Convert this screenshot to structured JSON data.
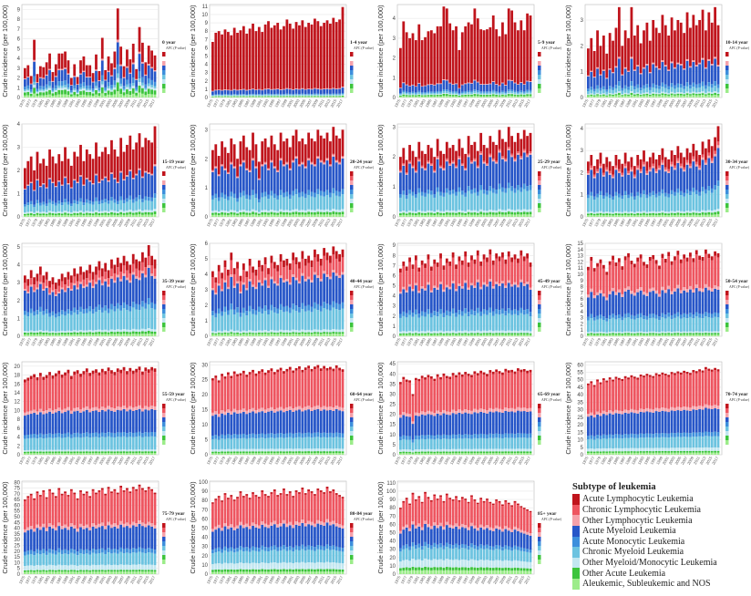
{
  "chart_data": {
    "type": "bar",
    "stacked": true,
    "ylabel": "Crude incidence (per 100,000)",
    "apc_header": "APC (P value)",
    "years": [
      1975,
      1976,
      1977,
      1978,
      1979,
      1980,
      1981,
      1982,
      1983,
      1984,
      1985,
      1986,
      1987,
      1988,
      1989,
      1990,
      1991,
      1992,
      1993,
      1994,
      1995,
      1996,
      1997,
      1998,
      1999,
      2000,
      2001,
      2002,
      2003,
      2004,
      2005,
      2006,
      2007,
      2008,
      2009,
      2010,
      2011,
      2012,
      2013,
      2014,
      2015,
      2016,
      2017
    ],
    "legend": {
      "title": "Subtype of leukemia",
      "placement": "bottom-right",
      "items": [
        {
          "name": "Acute Lymphocytic Leukemia",
          "color": "#c0141c"
        },
        {
          "name": "Chronic Lymphocytic Leukemia",
          "color": "#ee5560"
        },
        {
          "name": "Other Lymphocytic Leukemia",
          "color": "#f5a1aa"
        },
        {
          "name": "Acute Myeloid Leukemia",
          "color": "#2756c8"
        },
        {
          "name": "Acute Monocytic Leukemia",
          "color": "#3d8fdc"
        },
        {
          "name": "Chronic Myeloid Leukemia",
          "color": "#6cc3e0"
        },
        {
          "name": "Other Myeloid/Monocytic Leukemia",
          "color": "#c2e7f1"
        },
        {
          "name": "Other Acute Leukemia",
          "color": "#3cc43c"
        },
        {
          "name": "Aleukemic, Subleukemic and NOS",
          "color": "#9cec8a"
        }
      ]
    },
    "panels": [
      {
        "title": "0 year",
        "ymax": 9.5,
        "step": 1,
        "shares": [
          0.35,
          0,
          0.03,
          0.25,
          0.1,
          0.05,
          0.05,
          0.1,
          0.07
        ],
        "totals": [
          3.0,
          3.3,
          2.2,
          5.9,
          2.4,
          3.2,
          3.1,
          3.6,
          4.5,
          2.6,
          3.4,
          4.5,
          4.5,
          4.7,
          3.8,
          2.0,
          3.4,
          2.1,
          3.8,
          4.2,
          3.3,
          3.3,
          2.5,
          4.4,
          2.7,
          6.1,
          2.8,
          4.2,
          3.5,
          4.7,
          9.1,
          5.2,
          3.2,
          4.9,
          3.9,
          5.5,
          2.9,
          7.2,
          5.6,
          3.6,
          5.3,
          4.8,
          4.3
        ]
      },
      {
        "title": "1-4 year",
        "ymax": 11.2,
        "step": 1,
        "shares": [
          0.88,
          0,
          0.01,
          0.06,
          0.01,
          0.01,
          0.01,
          0.01,
          0.01
        ],
        "totals": [
          6.7,
          7.8,
          8.0,
          7.6,
          8.2,
          7.9,
          7.5,
          8.4,
          7.8,
          8.1,
          8.6,
          7.7,
          8.3,
          8.9,
          8.0,
          8.5,
          7.9,
          8.8,
          9.2,
          8.4,
          8.7,
          9.0,
          8.2,
          8.6,
          9.4,
          8.9,
          8.3,
          9.1,
          8.7,
          9.3,
          8.5,
          9.0,
          8.8,
          9.5,
          9.2,
          8.6,
          9.0,
          9.3,
          8.9,
          9.6,
          9.1,
          9.4,
          10.9
        ]
      },
      {
        "title": "5-9 year",
        "ymax": 4.7,
        "step": 1,
        "shares": [
          0.8,
          0,
          0.01,
          0.1,
          0.02,
          0.02,
          0.01,
          0.02,
          0.02
        ],
        "totals": [
          2.5,
          3.85,
          3.3,
          3.0,
          3.25,
          2.9,
          3.7,
          2.9,
          3.05,
          3.35,
          3.4,
          3.25,
          3.6,
          3.6,
          4.6,
          4.5,
          3.75,
          3.4,
          3.6,
          2.4,
          3.3,
          3.6,
          3.8,
          3.7,
          4.5,
          4.0,
          3.45,
          3.4,
          3.45,
          3.55,
          4.15,
          3.45,
          3.1,
          3.8,
          3.2,
          4.5,
          4.4,
          3.8,
          3.4,
          3.9,
          3.4,
          4.25,
          4.15
        ]
      },
      {
        "title": "10-14 year",
        "ymax": 3.6,
        "step": 1,
        "shares": [
          0.55,
          0,
          0.02,
          0.25,
          0.05,
          0.06,
          0.02,
          0.02,
          0.03
        ],
        "totals": [
          1.9,
          2.3,
          1.8,
          2.6,
          2.0,
          2.4,
          1.7,
          2.5,
          2.2,
          2.7,
          3.5,
          2.0,
          2.6,
          2.3,
          3.5,
          2.4,
          2.8,
          2.1,
          2.6,
          2.9,
          2.2,
          3.0,
          2.7,
          2.5,
          3.2,
          2.8,
          2.4,
          3.1,
          2.6,
          3.0,
          2.9,
          2.5,
          3.3,
          2.7,
          3.2,
          2.8,
          3.0,
          3.4,
          2.6,
          3.3,
          2.9,
          3.5,
          2.8
        ]
      },
      {
        "title": "15-19 year",
        "ymax": 4.0,
        "step": 1,
        "shares": [
          0.42,
          0,
          0.02,
          0.3,
          0.05,
          0.12,
          0.03,
          0.03,
          0.03
        ],
        "totals": [
          2.1,
          2.4,
          2.6,
          2.0,
          2.8,
          2.3,
          2.5,
          2.2,
          2.9,
          2.6,
          2.3,
          2.7,
          2.4,
          3.0,
          2.5,
          2.2,
          2.8,
          2.6,
          3.1,
          2.4,
          2.9,
          2.7,
          2.5,
          3.2,
          2.6,
          2.8,
          3.0,
          2.7,
          3.3,
          2.9,
          2.6,
          3.4,
          2.8,
          3.1,
          3.5,
          2.9,
          3.2,
          3.6,
          3.0,
          3.4,
          3.3,
          3.2,
          3.9
        ]
      },
      {
        "title": "20-24 year",
        "ymax": 3.2,
        "step": 1,
        "shares": [
          0.3,
          0.01,
          0.02,
          0.35,
          0.06,
          0.17,
          0.03,
          0.03,
          0.03
        ],
        "totals": [
          2.3,
          2.5,
          2.1,
          2.6,
          2.4,
          2.2,
          2.7,
          2.5,
          2.0,
          2.6,
          2.8,
          2.4,
          2.3,
          2.9,
          2.5,
          1.9,
          2.6,
          2.7,
          2.4,
          2.8,
          2.5,
          2.3,
          2.9,
          2.6,
          2.7,
          2.4,
          2.8,
          3.0,
          2.6,
          2.7,
          2.5,
          2.9,
          2.7,
          2.6,
          3.0,
          2.8,
          2.7,
          2.9,
          2.6,
          3.1,
          2.8,
          2.7,
          3.0
        ]
      },
      {
        "title": "25-29 year",
        "ymax": 3.1,
        "step": 1,
        "shares": [
          0.22,
          0.02,
          0.02,
          0.36,
          0.06,
          0.23,
          0.03,
          0.03,
          0.03
        ],
        "totals": [
          2.0,
          2.3,
          1.9,
          2.4,
          2.2,
          2.0,
          2.5,
          2.2,
          2.1,
          2.4,
          2.3,
          2.0,
          2.6,
          2.2,
          2.1,
          2.5,
          2.3,
          2.4,
          2.2,
          2.6,
          2.3,
          2.1,
          2.7,
          2.4,
          2.5,
          2.2,
          2.8,
          2.4,
          2.3,
          2.7,
          2.5,
          2.4,
          2.9,
          2.6,
          2.5,
          3.0,
          2.7,
          2.5,
          2.8,
          2.6,
          2.9,
          2.7,
          2.8
        ]
      },
      {
        "title": "30-34 year",
        "ymax": 4.2,
        "step": 1,
        "shares": [
          0.17,
          0.04,
          0.03,
          0.36,
          0.06,
          0.25,
          0.03,
          0.03,
          0.03
        ],
        "totals": [
          2.5,
          2.8,
          2.3,
          2.6,
          2.9,
          2.4,
          2.7,
          2.5,
          2.3,
          2.8,
          2.6,
          2.4,
          2.9,
          2.5,
          2.7,
          2.3,
          2.8,
          2.6,
          3.0,
          2.5,
          2.7,
          2.9,
          2.6,
          2.8,
          3.1,
          2.7,
          2.6,
          3.0,
          2.8,
          3.2,
          2.9,
          2.7,
          3.1,
          2.9,
          3.3,
          3.0,
          2.8,
          3.4,
          3.1,
          3.5,
          3.2,
          3.6,
          4.1
        ]
      },
      {
        "title": "35-39 year",
        "ymax": 5.2,
        "step": 1,
        "shares": [
          0.12,
          0.1,
          0.03,
          0.33,
          0.07,
          0.26,
          0.03,
          0.03,
          0.03
        ],
        "totals": [
          3.4,
          3.2,
          3.7,
          3.3,
          3.5,
          3.9,
          3.4,
          3.6,
          3.1,
          3.3,
          3.0,
          3.2,
          3.5,
          3.3,
          3.6,
          3.4,
          3.8,
          3.5,
          3.9,
          3.6,
          3.7,
          4.0,
          3.6,
          3.9,
          4.2,
          3.8,
          4.1,
          3.7,
          4.3,
          4.0,
          4.4,
          4.1,
          4.5,
          4.2,
          4.0,
          4.6,
          4.3,
          4.2,
          4.7,
          4.4,
          5.1,
          4.5,
          4.3
        ]
      },
      {
        "title": "40-44 year",
        "ymax": 6.0,
        "step": 1,
        "shares": [
          0.09,
          0.17,
          0.03,
          0.32,
          0.07,
          0.24,
          0.03,
          0.02,
          0.03
        ],
        "totals": [
          4.2,
          3.8,
          4.6,
          4.1,
          4.9,
          4.3,
          5.4,
          4.4,
          4.8,
          3.9,
          4.7,
          4.2,
          5.0,
          4.5,
          4.3,
          4.9,
          4.6,
          5.1,
          4.4,
          5.2,
          4.8,
          4.6,
          5.3,
          4.9,
          5.0,
          4.7,
          5.4,
          5.1,
          4.8,
          5.5,
          5.0,
          5.2,
          4.9,
          5.6,
          5.3,
          5.0,
          5.7,
          5.4,
          5.2,
          5.8,
          5.5,
          5.3,
          5.6
        ]
      },
      {
        "title": "45-49 year",
        "ymax": 9.2,
        "step": 1,
        "shares": [
          0.06,
          0.28,
          0.03,
          0.3,
          0.06,
          0.2,
          0.03,
          0.02,
          0.02
        ],
        "totals": [
          6.7,
          7.4,
          6.9,
          7.8,
          7.1,
          8.0,
          6.8,
          7.5,
          7.2,
          8.1,
          6.9,
          7.6,
          7.3,
          8.2,
          7.0,
          7.7,
          7.4,
          8.3,
          7.1,
          7.9,
          7.5,
          8.4,
          7.3,
          8.0,
          7.6,
          8.5,
          7.4,
          8.1,
          7.8,
          8.6,
          7.5,
          8.2,
          7.9,
          8.3,
          7.6,
          8.4,
          7.8,
          8.1,
          7.7,
          8.5,
          7.9,
          8.2,
          7.3
        ]
      },
      {
        "title": "50-54 year",
        "ymax": 15,
        "step": 1,
        "shares": [
          0.05,
          0.35,
          0.04,
          0.28,
          0.05,
          0.17,
          0.02,
          0.02,
          0.02
        ],
        "totals": [
          11.2,
          12.8,
          11.0,
          11.8,
          12.4,
          11.5,
          10.4,
          12.1,
          13.0,
          11.9,
          12.6,
          11.3,
          12.9,
          13.4,
          12.2,
          11.7,
          12.7,
          13.2,
          12.0,
          11.6,
          12.8,
          13.1,
          12.3,
          11.4,
          13.3,
          12.5,
          13.6,
          12.1,
          12.9,
          13.8,
          12.4,
          13.2,
          12.7,
          13.5,
          12.6,
          13.9,
          13.0,
          12.8,
          14.0,
          13.3,
          12.9,
          13.7,
          13.4
        ]
      },
      {
        "title": "55-59 year",
        "ymax": 21,
        "step": 2,
        "shares": [
          0.04,
          0.4,
          0.04,
          0.26,
          0.05,
          0.15,
          0.02,
          0.02,
          0.02
        ],
        "totals": [
          17.0,
          17.4,
          17.8,
          18.2,
          17.5,
          18.5,
          17.6,
          18.0,
          18.7,
          17.9,
          18.4,
          19.0,
          18.1,
          18.6,
          19.2,
          17.8,
          18.8,
          19.1,
          18.3,
          18.9,
          19.5,
          18.5,
          19.0,
          19.3,
          18.6,
          19.4,
          18.9,
          19.7,
          19.1,
          18.7,
          19.5,
          19.2,
          19.8,
          18.9,
          19.6,
          19.0,
          19.4,
          19.9,
          18.8,
          19.7,
          19.3,
          19.8,
          19.5
        ]
      },
      {
        "title": "60-64 year",
        "ymax": 31,
        "step": 5,
        "shares": [
          0.03,
          0.42,
          0.04,
          0.26,
          0.05,
          0.13,
          0.03,
          0.02,
          0.02
        ],
        "totals": [
          25.5,
          26.4,
          24.8,
          27.0,
          26.1,
          27.5,
          26.3,
          27.8,
          26.9,
          27.2,
          28.0,
          26.7,
          27.6,
          28.3,
          27.1,
          27.9,
          28.5,
          27.4,
          28.2,
          28.8,
          27.6,
          28.4,
          29.0,
          27.9,
          28.6,
          29.3,
          28.1,
          28.9,
          29.5,
          28.3,
          29.1,
          29.7,
          28.6,
          29.4,
          29.9,
          28.8,
          29.6,
          28.9,
          29.3,
          28.7,
          29.8,
          29.0,
          28.5
        ]
      },
      {
        "title": "65-69 year",
        "ymax": 46,
        "step": 5,
        "shares": [
          0.03,
          0.42,
          0.04,
          0.26,
          0.05,
          0.13,
          0.03,
          0.02,
          0.02
        ],
        "totals": [
          36.0,
          38.5,
          37.2,
          36.8,
          30.0,
          38.0,
          37.5,
          39.1,
          38.3,
          39.5,
          38.8,
          37.6,
          39.8,
          38.4,
          40.2,
          39.0,
          38.6,
          40.5,
          39.4,
          40.8,
          39.7,
          41.0,
          40.1,
          39.5,
          41.3,
          40.4,
          41.6,
          40.8,
          40.0,
          41.9,
          41.1,
          42.2,
          41.4,
          40.7,
          42.5,
          41.8,
          42.0,
          41.2,
          42.8,
          42.1,
          42.4,
          41.6,
          42.0
        ]
      },
      {
        "title": "70-74 year",
        "ymax": 62,
        "step": 5,
        "shares": [
          0.025,
          0.4,
          0.04,
          0.27,
          0.05,
          0.13,
          0.04,
          0.02,
          0.025
        ],
        "totals": [
          47.5,
          49.0,
          46.5,
          50.2,
          48.3,
          51.0,
          49.5,
          51.6,
          50.1,
          52.0,
          51.2,
          50.5,
          52.4,
          51.5,
          53.0,
          52.1,
          51.4,
          53.5,
          52.8,
          54.0,
          53.2,
          52.5,
          54.4,
          53.6,
          54.8,
          54.1,
          53.3,
          55.2,
          54.5,
          55.6,
          54.8,
          56.0,
          55.3,
          54.6,
          56.5,
          55.8,
          57.0,
          56.2,
          58.5,
          57.4,
          56.8,
          57.9,
          57.0
        ]
      },
      {
        "title": "75-79 year",
        "ymax": 81,
        "step": 5,
        "shares": [
          0.02,
          0.38,
          0.04,
          0.26,
          0.05,
          0.14,
          0.06,
          0.02,
          0.03
        ],
        "totals": [
          65,
          68,
          70,
          66,
          72,
          69,
          73,
          67,
          74,
          71,
          68,
          75,
          70,
          72,
          69,
          74,
          71,
          66,
          73,
          70,
          72,
          68,
          74,
          71,
          73,
          75,
          70,
          76,
          72,
          74,
          71,
          77,
          73,
          75,
          72,
          76,
          74,
          78,
          75,
          73,
          76,
          74,
          71
        ]
      },
      {
        "title": "80-84 year",
        "ymax": 101,
        "step": 10,
        "shares": [
          0.02,
          0.35,
          0.04,
          0.25,
          0.05,
          0.15,
          0.08,
          0.03,
          0.03
        ],
        "totals": [
          78,
          82,
          85,
          80,
          88,
          83,
          86,
          81,
          84,
          90,
          85,
          87,
          83,
          89,
          86,
          84,
          91,
          87,
          85,
          89,
          92,
          86,
          88,
          93,
          87,
          90,
          85,
          91,
          89,
          94,
          88,
          92,
          90,
          87,
          93,
          91,
          89,
          95,
          90,
          92,
          88,
          86,
          84
        ]
      },
      {
        "title": "85+ year",
        "ymax": 112,
        "step": 10,
        "shares": [
          0.02,
          0.33,
          0.04,
          0.22,
          0.05,
          0.15,
          0.1,
          0.04,
          0.05
        ],
        "totals": [
          80,
          88,
          92,
          85,
          98,
          90,
          94,
          87,
          99,
          93,
          89,
          96,
          91,
          95,
          88,
          97,
          92,
          90,
          94,
          89,
          93,
          91,
          87,
          95,
          90,
          86,
          92,
          88,
          91,
          87,
          85,
          90,
          88,
          84,
          89,
          86,
          83,
          88,
          85,
          82,
          80,
          78,
          76
        ]
      }
    ]
  }
}
